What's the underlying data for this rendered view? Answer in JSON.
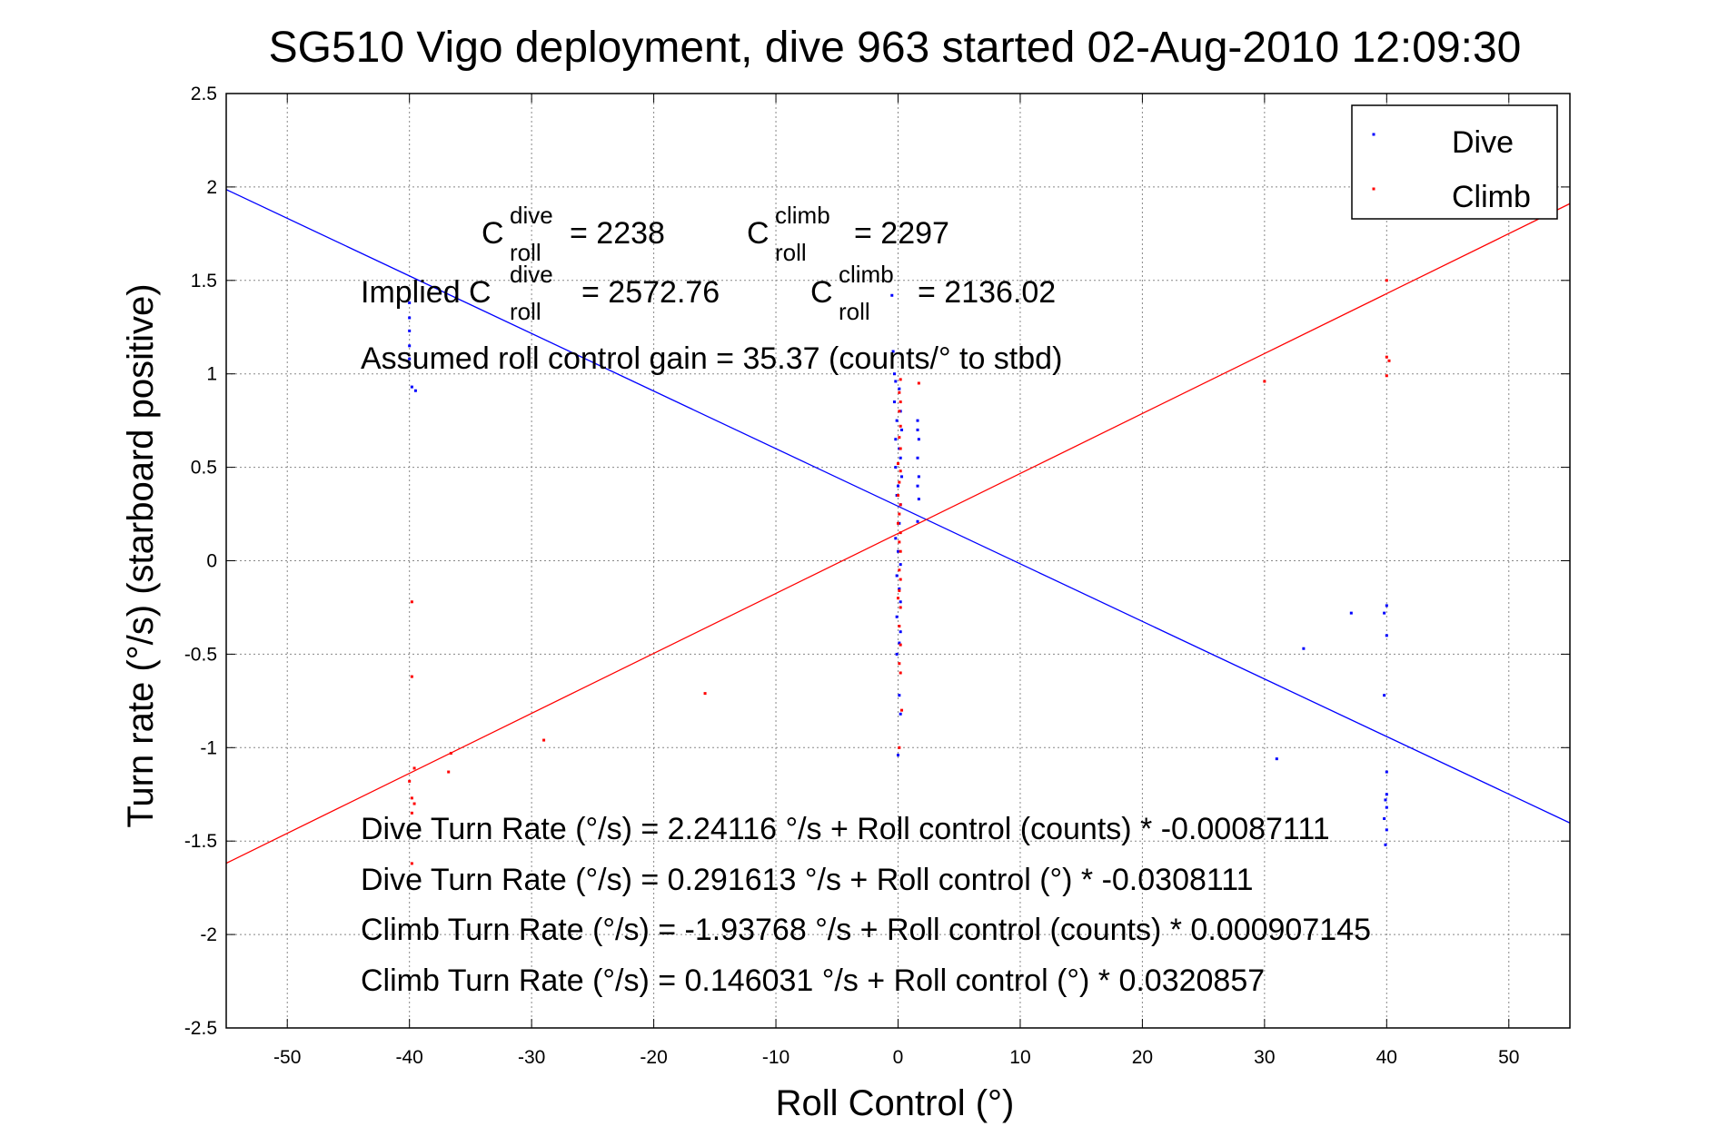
{
  "chart_data": {
    "type": "scatter",
    "title": "SG510 Vigo deployment, dive 963 started 02-Aug-2010 12:09:30",
    "xlabel": "Roll Control (°)",
    "ylabel": "Turn rate (°/s)  (starboard positive)",
    "xlim": [
      -55,
      55
    ],
    "ylim": [
      -2.5,
      2.5
    ],
    "xticks": [
      -50,
      -40,
      -30,
      -20,
      -10,
      0,
      10,
      20,
      30,
      40,
      50
    ],
    "yticks": [
      -2.5,
      -2,
      -1.5,
      -1,
      -0.5,
      0,
      0.5,
      1,
      1.5,
      2,
      2.5
    ],
    "grid": true,
    "legend_position": "top-right",
    "colors": {
      "Dive": "#0000ff",
      "Climb": "#ff0000"
    },
    "series": [
      {
        "name": "Dive",
        "points": [
          [
            -40,
            1.38
          ],
          [
            -40,
            1.3
          ],
          [
            -40,
            1.23
          ],
          [
            -40,
            1.15
          ],
          [
            -40,
            1.08
          ],
          [
            -39.8,
            0.93
          ],
          [
            -39.5,
            0.91
          ],
          [
            -0.5,
            1.42
          ],
          [
            -0.4,
            1.12
          ],
          [
            -0.3,
            1.0
          ],
          [
            -0.2,
            0.96
          ],
          [
            0.1,
            0.92
          ],
          [
            -0.3,
            0.85
          ],
          [
            0.2,
            0.8
          ],
          [
            -0.1,
            0.75
          ],
          [
            0.3,
            0.7
          ],
          [
            -0.2,
            0.65
          ],
          [
            0.1,
            0.6
          ],
          [
            0.2,
            0.55
          ],
          [
            -0.2,
            0.5
          ],
          [
            0.3,
            0.45
          ],
          [
            0,
            0.4
          ],
          [
            -0.1,
            0.35
          ],
          [
            0.2,
            0.3
          ],
          [
            0.1,
            0.2
          ],
          [
            -0.2,
            0.12
          ],
          [
            0,
            0.05
          ],
          [
            0.2,
            -0.02
          ],
          [
            -0.1,
            -0.08
          ],
          [
            0.1,
            -0.15
          ],
          [
            0.2,
            -0.22
          ],
          [
            -0.1,
            -0.3
          ],
          [
            0.2,
            -0.38
          ],
          [
            0.1,
            -0.44
          ],
          [
            -0.1,
            -0.5
          ],
          [
            0.1,
            -0.72
          ],
          [
            0.2,
            -0.82
          ],
          [
            0,
            -1.04
          ],
          [
            1.6,
            0.75
          ],
          [
            1.6,
            0.7
          ],
          [
            1.7,
            0.65
          ],
          [
            1.6,
            0.55
          ],
          [
            1.7,
            0.45
          ],
          [
            1.6,
            0.4
          ],
          [
            1.7,
            0.33
          ],
          [
            1.6,
            0.21
          ],
          [
            31,
            -1.06
          ],
          [
            33.2,
            -0.47
          ],
          [
            37.1,
            -0.28
          ],
          [
            40,
            -0.24
          ],
          [
            39.8,
            -0.28
          ],
          [
            40,
            -0.4
          ],
          [
            39.8,
            -0.72
          ],
          [
            40,
            -1.13
          ],
          [
            40,
            -1.25
          ],
          [
            39.9,
            -1.28
          ],
          [
            40,
            -1.32
          ],
          [
            39.8,
            -1.38
          ],
          [
            40,
            -1.44
          ],
          [
            39.9,
            -1.52
          ]
        ]
      },
      {
        "name": "Climb",
        "points": [
          [
            -39.8,
            -0.22
          ],
          [
            -39.8,
            -0.62
          ],
          [
            -39.6,
            -1.11
          ],
          [
            -40,
            -1.18
          ],
          [
            -39.8,
            -1.27
          ],
          [
            -39.6,
            -1.3
          ],
          [
            -39.8,
            -1.35
          ],
          [
            -39.8,
            -1.62
          ],
          [
            -36.6,
            -1.03
          ],
          [
            -36.8,
            -1.13
          ],
          [
            -29,
            -0.96
          ],
          [
            -15.8,
            -0.71
          ],
          [
            0.2,
            0.97
          ],
          [
            0.1,
            0.9
          ],
          [
            0.2,
            0.85
          ],
          [
            0.1,
            0.8
          ],
          [
            0.2,
            0.72
          ],
          [
            0.1,
            0.66
          ],
          [
            0.2,
            0.6
          ],
          [
            0,
            0.52
          ],
          [
            0.2,
            0.48
          ],
          [
            0.1,
            0.42
          ],
          [
            0,
            0.35
          ],
          [
            0.2,
            0.3
          ],
          [
            0.1,
            0.25
          ],
          [
            0,
            0.2
          ],
          [
            0.2,
            0.15
          ],
          [
            0.1,
            0.1
          ],
          [
            0.2,
            0.05
          ],
          [
            0.1,
            -0.05
          ],
          [
            0.2,
            -0.1
          ],
          [
            0.1,
            -0.16
          ],
          [
            0,
            -0.2
          ],
          [
            0.2,
            -0.25
          ],
          [
            0.1,
            -0.35
          ],
          [
            0.2,
            -0.45
          ],
          [
            0.1,
            -0.55
          ],
          [
            0.2,
            -0.6
          ],
          [
            0.3,
            -0.8
          ],
          [
            0.1,
            -1.0
          ],
          [
            1.7,
            0.95
          ],
          [
            30,
            0.96
          ],
          [
            40,
            1.5
          ],
          [
            40,
            1.09
          ],
          [
            40.2,
            1.07
          ],
          [
            40,
            0.99
          ]
        ]
      }
    ],
    "fit_lines": [
      {
        "name": "Dive",
        "intercept": 0.291613,
        "slope": -0.0308111
      },
      {
        "name": "Climb",
        "intercept": 0.146031,
        "slope": 0.0320857
      }
    ],
    "annotations": {
      "c_roll_symbol": "C",
      "roll_sub": "roll",
      "dive_sup": "dive",
      "climb_sup": "climb",
      "c_dive_value": "= 2238",
      "c_climb_value": "= 2297",
      "implied_prefix": "Implied C",
      "implied_dive_value": "= 2572.76",
      "implied_climb_value": "= 2136.02",
      "gain_line": "Assumed roll control gain = 35.37 (counts/° to stbd)",
      "fit_dive_counts": "Dive Turn Rate (°/s) = 2.24116 °/s + Roll control (counts) * -0.00087111",
      "fit_dive_deg": "Dive Turn Rate (°/s) = 0.291613 °/s + Roll control (°) * -0.0308111",
      "fit_climb_counts": "Climb Turn Rate (°/s) = -1.93768 °/s + Roll control (counts) * 0.000907145",
      "fit_climb_deg": "Climb Turn Rate (°/s) = 0.146031 °/s + Roll control (°) * 0.0320857"
    }
  }
}
